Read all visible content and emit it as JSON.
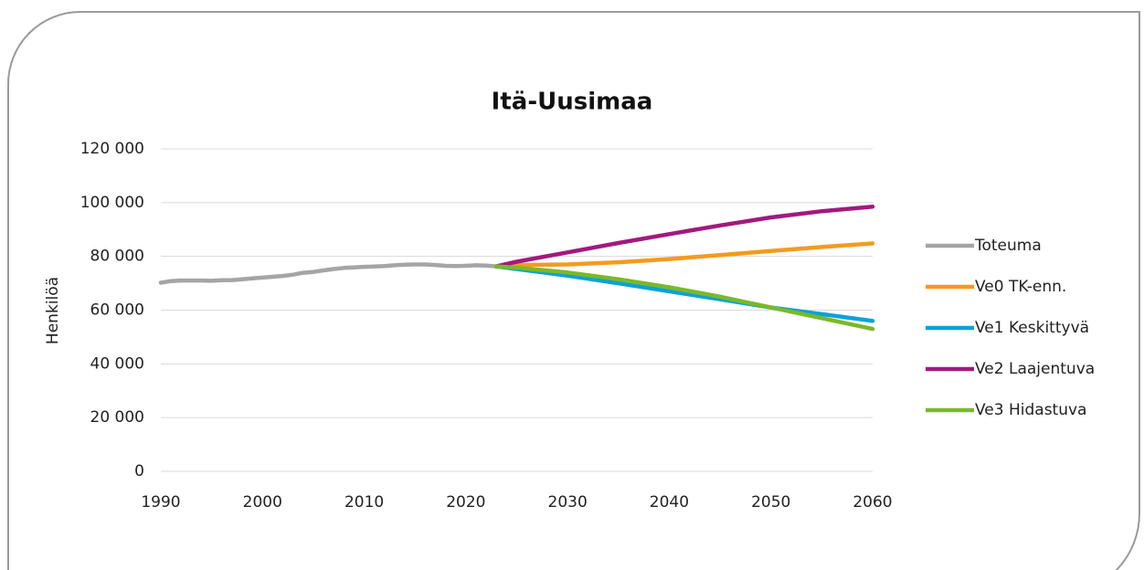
{
  "chart_data": {
    "type": "line",
    "title": "Itä-Uusimaa",
    "y_label": "Henkilöä",
    "x": [
      1990,
      1991,
      1992,
      1993,
      1994,
      1995,
      1996,
      1997,
      1998,
      1999,
      2000,
      2001,
      2002,
      2003,
      2004,
      2005,
      2006,
      2007,
      2008,
      2009,
      2010,
      2011,
      2012,
      2013,
      2014,
      2015,
      2016,
      2017,
      2018,
      2019,
      2020,
      2021,
      2022,
      2023,
      2025,
      2030,
      2035,
      2040,
      2045,
      2050,
      2055,
      2060
    ],
    "series": [
      {
        "name": "Toteuma",
        "color": "#a5a5a5",
        "values": [
          70200,
          70800,
          71000,
          71000,
          71000,
          70900,
          71100,
          71200,
          71500,
          71800,
          72100,
          72400,
          72700,
          73200,
          73900,
          74200,
          74800,
          75300,
          75700,
          75900,
          76100,
          76200,
          76400,
          76700,
          76900,
          77000,
          77000,
          76800,
          76500,
          76400,
          76500,
          76700,
          76600,
          76300,
          null,
          null,
          null,
          null,
          null,
          null,
          null,
          null
        ]
      },
      {
        "name": "Ve0 TK-enn.",
        "color": "#f39b1f",
        "values": [
          null,
          null,
          null,
          null,
          null,
          null,
          null,
          null,
          null,
          null,
          null,
          null,
          null,
          null,
          null,
          null,
          null,
          null,
          null,
          null,
          null,
          null,
          null,
          null,
          null,
          null,
          null,
          null,
          null,
          null,
          null,
          null,
          null,
          76300,
          76800,
          77000,
          77800,
          79000,
          80500,
          82000,
          83500,
          84800
        ]
      },
      {
        "name": "Ve1 Keskittyvä",
        "color": "#0aa2d8",
        "values": [
          null,
          null,
          null,
          null,
          null,
          null,
          null,
          null,
          null,
          null,
          null,
          null,
          null,
          null,
          null,
          null,
          null,
          null,
          null,
          null,
          null,
          null,
          null,
          null,
          null,
          null,
          null,
          null,
          null,
          null,
          null,
          null,
          null,
          76300,
          75300,
          72800,
          70000,
          67000,
          64000,
          61000,
          58500,
          56000
        ]
      },
      {
        "name": "Ve2 Laajentuva",
        "color": "#a2197f",
        "values": [
          null,
          null,
          null,
          null,
          null,
          null,
          null,
          null,
          null,
          null,
          null,
          null,
          null,
          null,
          null,
          null,
          null,
          null,
          null,
          null,
          null,
          null,
          null,
          null,
          null,
          null,
          null,
          null,
          null,
          null,
          null,
          null,
          null,
          76300,
          78000,
          81500,
          85000,
          88300,
          91500,
          94500,
          96800,
          98500
        ]
      },
      {
        "name": "Ve3 Hidastuva",
        "color": "#7ab929",
        "values": [
          null,
          null,
          null,
          null,
          null,
          null,
          null,
          null,
          null,
          null,
          null,
          null,
          null,
          null,
          null,
          null,
          null,
          null,
          null,
          null,
          null,
          null,
          null,
          null,
          null,
          null,
          null,
          null,
          null,
          null,
          null,
          null,
          null,
          76300,
          75800,
          74000,
          71500,
          68500,
          65000,
          61000,
          57000,
          53000
        ]
      }
    ],
    "xlim": [
      1990,
      2060
    ],
    "xticks": [
      1990,
      2000,
      2010,
      2020,
      2030,
      2040,
      2050,
      2060
    ],
    "ylim": [
      0,
      120000
    ],
    "yticks": [
      0,
      {
        "value": 20000,
        "label": "20 000"
      },
      {
        "value": 40000,
        "label": "40 000"
      },
      {
        "value": 60000,
        "label": "60 000"
      },
      {
        "value": 80000,
        "label": "80 000"
      },
      {
        "value": 100000,
        "label": "100 000"
      },
      {
        "value": 120000,
        "label": "120 000"
      }
    ],
    "grid": true,
    "legend": "right"
  }
}
